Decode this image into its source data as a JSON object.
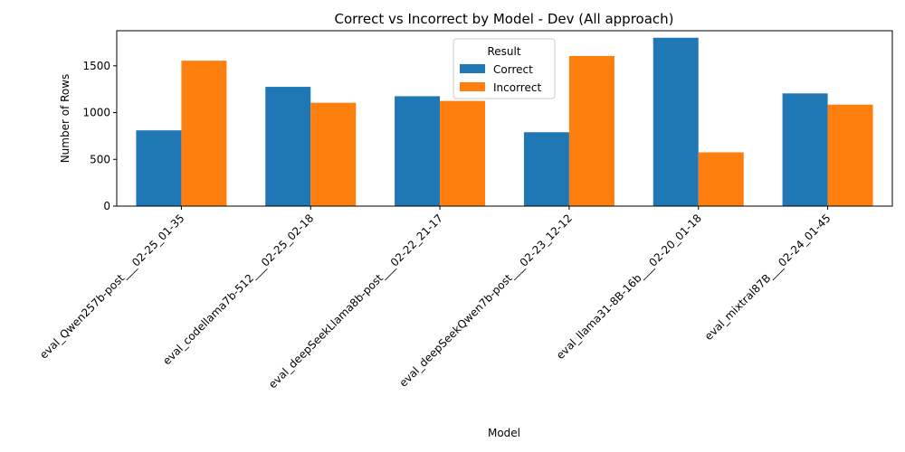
{
  "chart_data": {
    "type": "bar",
    "title": "Correct vs Incorrect by Model - Dev (All approach)",
    "xlabel": "Model",
    "ylabel": "Number of Rows",
    "categories": [
      "eval_Qwen257b-post___02-25_01-35",
      "eval_codellama7b-512___02-25_02-18",
      "eval_deepSeekLlama8b-post___02-22_21-17",
      "eval_deepSeekQwen7b-post___02-23_12-12",
      "eval_llama31-8B-16b___02-20_01-18",
      "eval_mixtral87B___02-24_01-45"
    ],
    "series": [
      {
        "name": "Correct",
        "color": "#1f77b4",
        "values": [
          810,
          1275,
          1175,
          790,
          1800,
          1205
        ]
      },
      {
        "name": "Incorrect",
        "color": "#ff7f0e",
        "values": [
          1555,
          1105,
          1125,
          1605,
          575,
          1085
        ]
      }
    ],
    "ylim": [
      0,
      1875
    ],
    "yticks": [
      0,
      500,
      1000,
      1500
    ],
    "legend": {
      "title": "Result",
      "position": "top-center"
    },
    "grid": false
  }
}
